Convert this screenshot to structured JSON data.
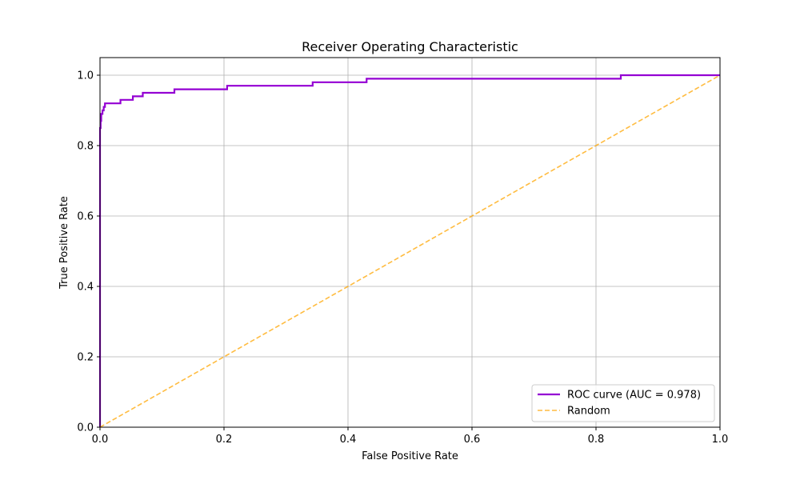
{
  "chart_data": {
    "type": "line",
    "title": "Receiver Operating Characteristic",
    "xlabel": "False Positive Rate",
    "ylabel": "True Positive Rate",
    "xlim": [
      0.0,
      1.0
    ],
    "ylim": [
      0.0,
      1.05
    ],
    "xticks": [
      "0.0",
      "0.2",
      "0.4",
      "0.6",
      "0.8",
      "1.0"
    ],
    "yticks": [
      "0.0",
      "0.2",
      "0.4",
      "0.6",
      "0.8",
      "1.0"
    ],
    "grid": true,
    "legend_position": "lower-right",
    "series": [
      {
        "name": "ROC curve (AUC = 0.978)",
        "color": "#9400d3",
        "style": "solid",
        "x": [
          0.0,
          0.0,
          0.001,
          0.001,
          0.002,
          0.002,
          0.004,
          0.004,
          0.006,
          0.006,
          0.008,
          0.008,
          0.033,
          0.033,
          0.053,
          0.053,
          0.069,
          0.069,
          0.12,
          0.12,
          0.205,
          0.205,
          0.343,
          0.343,
          0.43,
          0.43,
          0.84,
          0.84,
          1.0
        ],
        "y": [
          0.0,
          0.85,
          0.85,
          0.87,
          0.87,
          0.89,
          0.89,
          0.9,
          0.9,
          0.91,
          0.91,
          0.92,
          0.92,
          0.93,
          0.93,
          0.94,
          0.94,
          0.95,
          0.95,
          0.96,
          0.96,
          0.97,
          0.97,
          0.98,
          0.98,
          0.99,
          0.99,
          1.0,
          1.0
        ]
      },
      {
        "name": "Random",
        "color": "#ffa500",
        "style": "dashed",
        "x": [
          0.0,
          1.0
        ],
        "y": [
          0.0,
          1.0
        ]
      }
    ]
  }
}
